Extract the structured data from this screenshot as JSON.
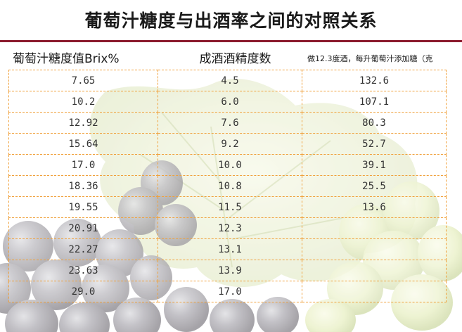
{
  "title": "葡萄汁糖度与出酒率之间的对照关系",
  "headers": [
    "葡萄汁糖度值Brix%",
    "成酒酒精度数",
    "做12.3度酒，每升葡萄汁添加糖（克"
  ],
  "rows": [
    [
      "7.65",
      "4.5",
      "132.6"
    ],
    [
      "10.2",
      "6.0",
      "107.1"
    ],
    [
      "12.92",
      "7.6",
      "80.3"
    ],
    [
      "15.64",
      "9.2",
      "52.7"
    ],
    [
      "17.0",
      "10.0",
      "39.1"
    ],
    [
      "18.36",
      "10.8",
      "25.5"
    ],
    [
      "19.55",
      "11.5",
      "13.6"
    ],
    [
      "20.91",
      "12.3",
      ""
    ],
    [
      "22.27",
      "13.1",
      ""
    ],
    [
      "23.63",
      "13.9",
      ""
    ],
    [
      "29.0",
      "17.0",
      ""
    ]
  ],
  "colors": {
    "accent_rule": "#8b1b2e",
    "grid_line": "#f0a13c"
  }
}
